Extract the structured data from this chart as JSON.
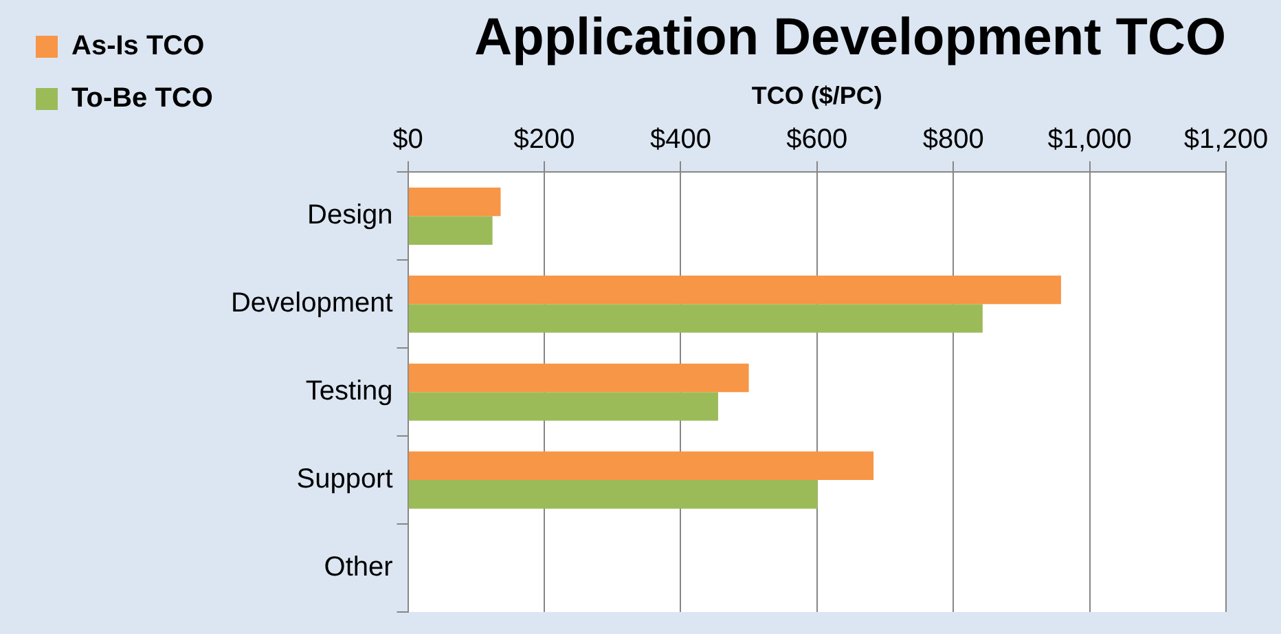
{
  "chart_data": {
    "type": "bar",
    "orientation": "horizontal",
    "title": "Application Development TCO",
    "xlabel": "TCO ($/PC)",
    "categories": [
      "Design",
      "Development",
      "Testing",
      "Support",
      "Other"
    ],
    "series": [
      {
        "name": "As-Is TCO",
        "color": "#f79646",
        "values": [
          136,
          958,
          500,
          683,
          0
        ]
      },
      {
        "name": "To-Be TCO",
        "color": "#9bbb59",
        "values": [
          124,
          843,
          455,
          601,
          0
        ]
      }
    ],
    "xlim": [
      0,
      1200
    ],
    "xticks": [
      {
        "value": 0,
        "label": "$0"
      },
      {
        "value": 200,
        "label": "$200"
      },
      {
        "value": 400,
        "label": "$400"
      },
      {
        "value": 600,
        "label": "$600"
      },
      {
        "value": 800,
        "label": "$800"
      },
      {
        "value": 1000,
        "label": "$1,000"
      },
      {
        "value": 1200,
        "label": "$1,200"
      }
    ],
    "grid": "x",
    "legend": "top left"
  }
}
